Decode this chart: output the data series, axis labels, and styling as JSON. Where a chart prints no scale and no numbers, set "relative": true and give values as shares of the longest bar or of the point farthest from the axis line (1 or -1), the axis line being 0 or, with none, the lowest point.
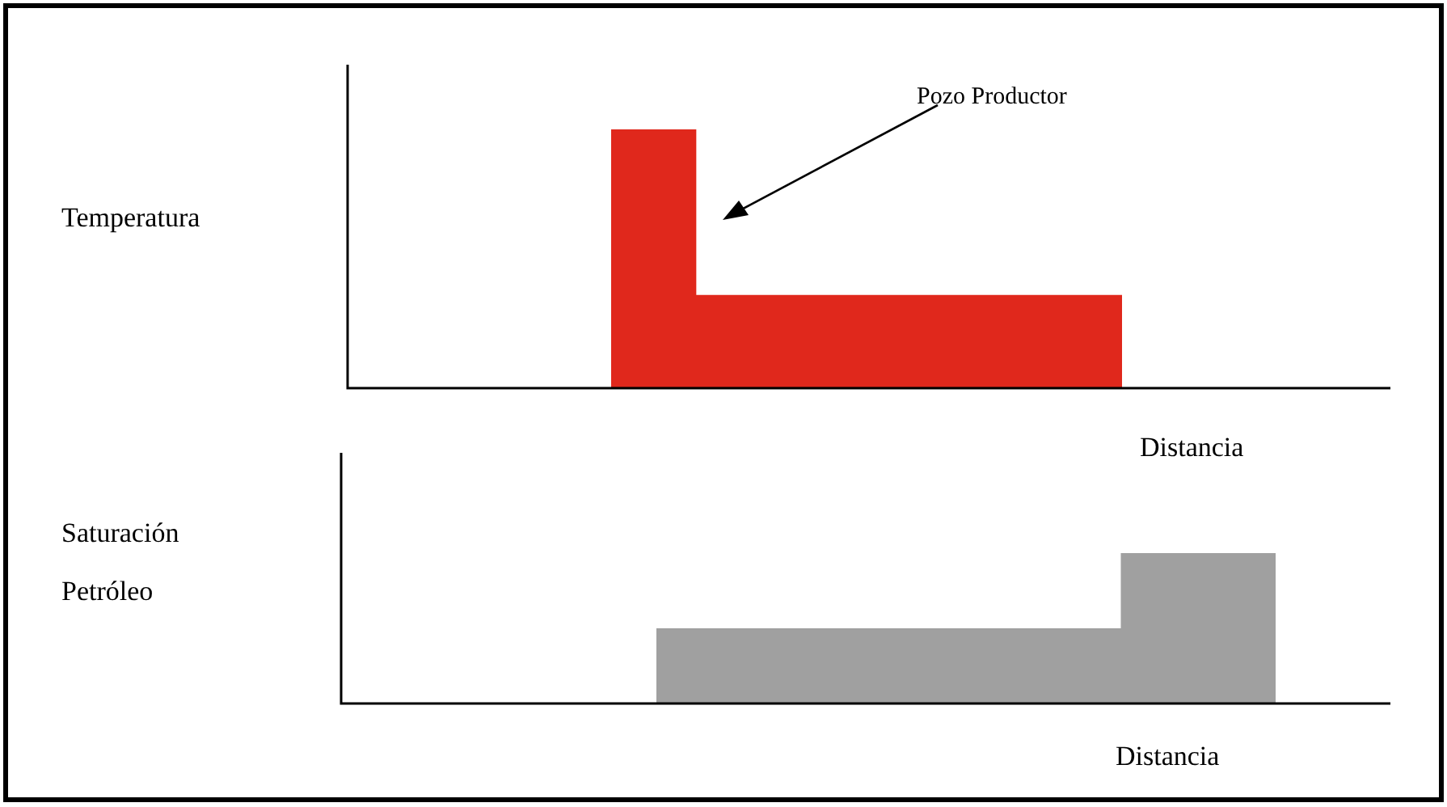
{
  "chart_data": [
    {
      "type": "area",
      "relative": true,
      "legend": false,
      "grid": false,
      "tick_labels": false,
      "ylabel": "Temperatura",
      "xlabel": "Distancia",
      "annotations": [
        "Pozo Productor"
      ],
      "categories": [
        null,
        null,
        null,
        null,
        null,
        null,
        null
      ],
      "series": [
        {
          "color": "#e0281c",
          "values": [
            1,
            0.36,
            0.36,
            0.36,
            0.36,
            0.36,
            0.36
          ]
        }
      ]
    },
    {
      "type": "area",
      "relative": true,
      "legend": false,
      "grid": false,
      "tick_labels": false,
      "ylabel": "Saturación Petróleo",
      "xlabel": "Distancia",
      "categories": [
        null,
        null,
        null,
        null,
        null,
        null,
        null,
        null,
        null,
        null,
        null,
        null,
        null
      ],
      "series": [
        {
          "color": "#a0a0a0",
          "values": [
            0.5,
            0.5,
            0.5,
            0.5,
            0.5,
            0.5,
            0.5,
            0.5,
            0.5,
            1,
            1,
            1,
            1
          ]
        }
      ]
    }
  ]
}
